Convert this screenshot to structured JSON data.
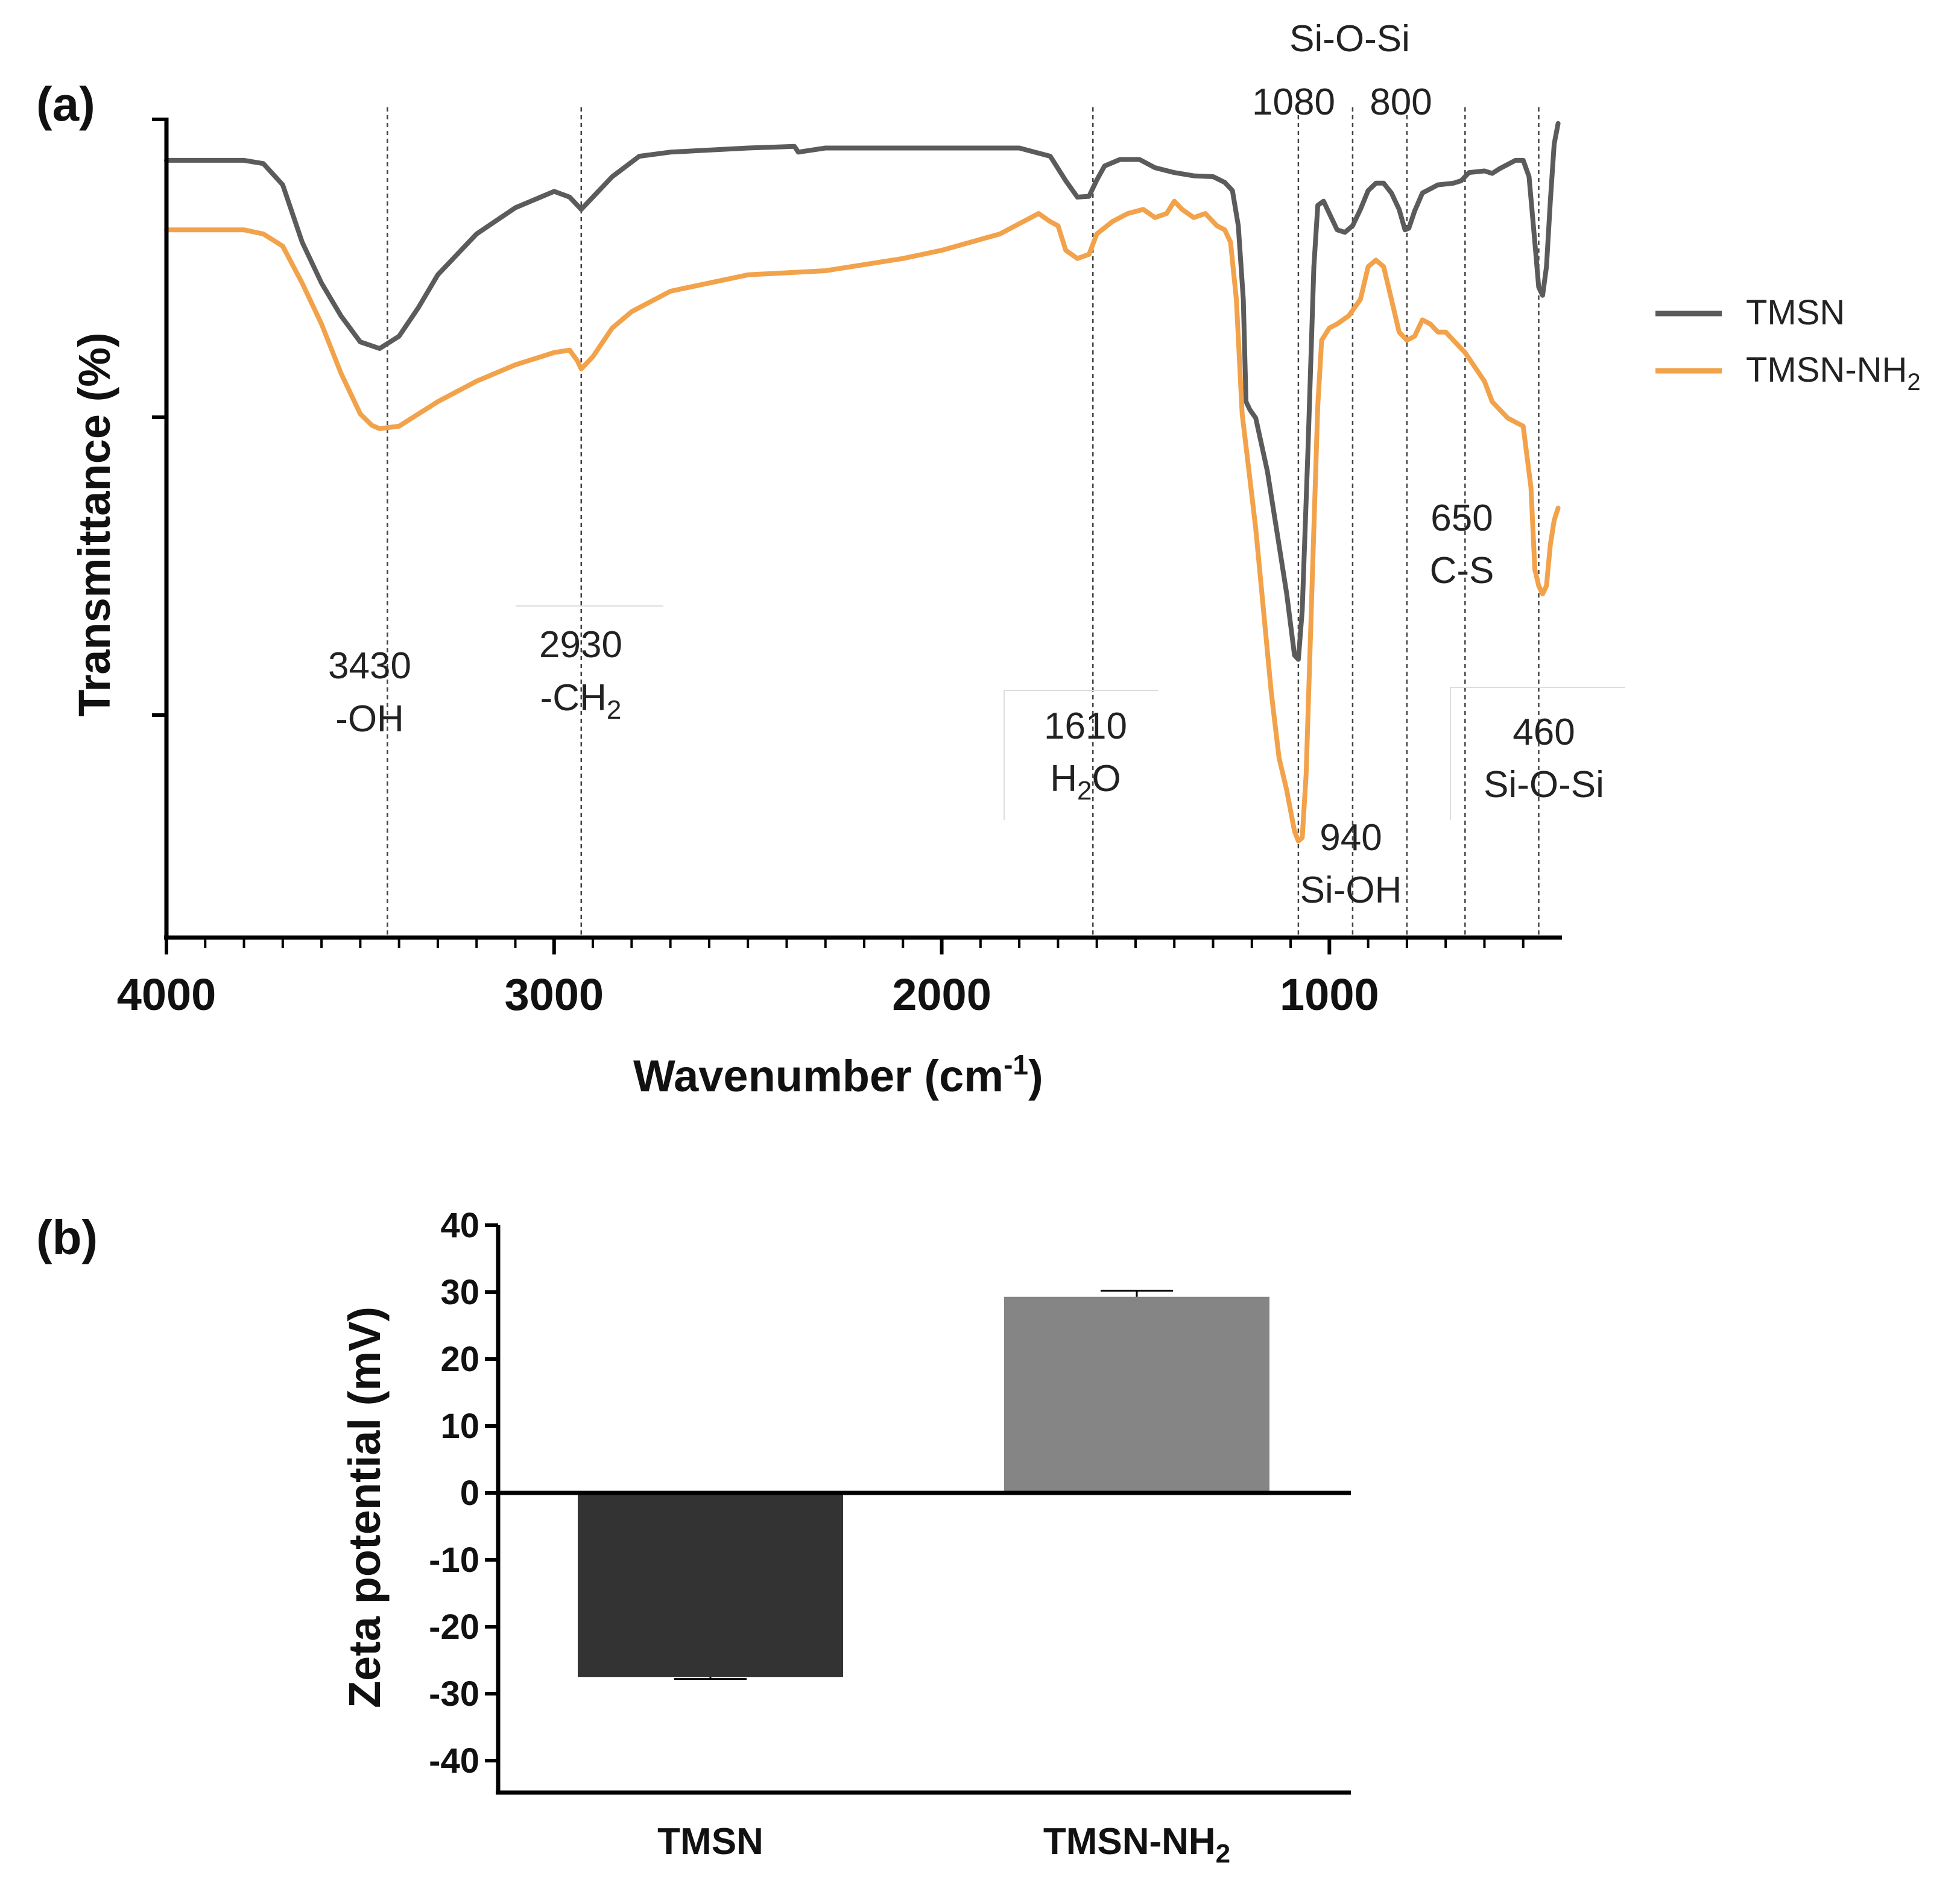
{
  "colors": {
    "tmsn_line": "#5b5b5b",
    "tmsn_nh2_line": "#f2a24a",
    "bar_tmsn": "#333333",
    "bar_tmsn_nh2": "#858585",
    "axis": "#000000",
    "guide": "#444444"
  },
  "chart_data": [
    {
      "type": "line",
      "panel_label": "(a)",
      "xlabel": "Wavenumber (cm",
      "xlabel_sup": "-1",
      "xlabel_end": ")",
      "ylabel": "Transmittance (%)",
      "xlim": [
        4000,
        400
      ],
      "x_reversed": true,
      "ylim": [
        0,
        100
      ],
      "y_ticks_labeled": false,
      "x_ticks": [
        "4000",
        "3000",
        "2000",
        "1000"
      ],
      "legend_position": "right",
      "series": [
        {
          "name": "TMSN",
          "color_key": "tmsn_line",
          "points": [
            [
              4000,
              95
            ],
            [
              3800,
              95
            ],
            [
              3750,
              94.6
            ],
            [
              3700,
              92
            ],
            [
              3650,
              85
            ],
            [
              3600,
              80
            ],
            [
              3550,
              76
            ],
            [
              3500,
              72.8
            ],
            [
              3450,
              72
            ],
            [
              3400,
              73.5
            ],
            [
              3350,
              77
            ],
            [
              3300,
              81
            ],
            [
              3200,
              86
            ],
            [
              3100,
              89.2
            ],
            [
              3000,
              91.2
            ],
            [
              2960,
              90.5
            ],
            [
              2930,
              89
            ],
            [
              2900,
              90.5
            ],
            [
              2850,
              93
            ],
            [
              2780,
              95.5
            ],
            [
              2700,
              96
            ],
            [
              2500,
              96.5
            ],
            [
              2380,
              96.7
            ],
            [
              2370,
              96
            ],
            [
              2300,
              96.5
            ],
            [
              2000,
              96.5
            ],
            [
              1800,
              96.5
            ],
            [
              1720,
              95.5
            ],
            [
              1680,
              92.5
            ],
            [
              1650,
              90.5
            ],
            [
              1620,
              90.6
            ],
            [
              1600,
              92.6
            ],
            [
              1580,
              94.3
            ],
            [
              1540,
              95.1
            ],
            [
              1490,
              95.1
            ],
            [
              1450,
              94.1
            ],
            [
              1400,
              93.5
            ],
            [
              1350,
              93.1
            ],
            [
              1300,
              93
            ],
            [
              1270,
              92.3
            ],
            [
              1250,
              91.3
            ],
            [
              1235,
              87
            ],
            [
              1222,
              78
            ],
            [
              1215,
              65.5
            ],
            [
              1205,
              64.5
            ],
            [
              1190,
              63.5
            ],
            [
              1160,
              57
            ],
            [
              1130,
              48
            ],
            [
              1110,
              42
            ],
            [
              1090,
              34.5
            ],
            [
              1080,
              34
            ],
            [
              1070,
              40
            ],
            [
              1055,
              60
            ],
            [
              1040,
              82
            ],
            [
              1030,
              89.5
            ],
            [
              1015,
              90
            ],
            [
              1000,
              88.5
            ],
            [
              980,
              86.5
            ],
            [
              960,
              86.2
            ],
            [
              940,
              87
            ],
            [
              920,
              89
            ],
            [
              900,
              91.3
            ],
            [
              880,
              92.2
            ],
            [
              860,
              92.2
            ],
            [
              840,
              91
            ],
            [
              820,
              89
            ],
            [
              805,
              86.5
            ],
            [
              795,
              86.7
            ],
            [
              780,
              88.8
            ],
            [
              760,
              91
            ],
            [
              740,
              91.5
            ],
            [
              720,
              92
            ],
            [
              680,
              92.2
            ],
            [
              660,
              92.5
            ],
            [
              640,
              93.5
            ],
            [
              600,
              93.7
            ],
            [
              580,
              93.4
            ],
            [
              560,
              94
            ],
            [
              520,
              95
            ],
            [
              500,
              95
            ],
            [
              485,
              93
            ],
            [
              470,
              85
            ],
            [
              460,
              79.5
            ],
            [
              450,
              78.5
            ],
            [
              440,
              82
            ],
            [
              430,
              90
            ],
            [
              420,
              97
            ],
            [
              410,
              99.5
            ]
          ]
        },
        {
          "name": "TMSN-NH",
          "name_sub": "2",
          "color_key": "tmsn_nh2_line",
          "points": [
            [
              4000,
              86.5
            ],
            [
              3800,
              86.5
            ],
            [
              3750,
              86
            ],
            [
              3700,
              84.5
            ],
            [
              3650,
              80
            ],
            [
              3600,
              75
            ],
            [
              3550,
              69
            ],
            [
              3500,
              64
            ],
            [
              3470,
              62.6
            ],
            [
              3450,
              62.2
            ],
            [
              3400,
              62.5
            ],
            [
              3350,
              64
            ],
            [
              3300,
              65.5
            ],
            [
              3200,
              68
            ],
            [
              3100,
              70
            ],
            [
              3000,
              71.5
            ],
            [
              2960,
              71.8
            ],
            [
              2940,
              70.5
            ],
            [
              2930,
              69.5
            ],
            [
              2900,
              71
            ],
            [
              2850,
              74.5
            ],
            [
              2800,
              76.5
            ],
            [
              2700,
              79
            ],
            [
              2500,
              81
            ],
            [
              2300,
              81.5
            ],
            [
              2100,
              83
            ],
            [
              2000,
              84
            ],
            [
              1850,
              86
            ],
            [
              1790,
              87.5
            ],
            [
              1750,
              88.5
            ],
            [
              1720,
              87.5
            ],
            [
              1700,
              87
            ],
            [
              1680,
              84
            ],
            [
              1650,
              83
            ],
            [
              1620,
              83.5
            ],
            [
              1600,
              86
            ],
            [
              1560,
              87.5
            ],
            [
              1520,
              88.5
            ],
            [
              1480,
              89
            ],
            [
              1450,
              88
            ],
            [
              1420,
              88.5
            ],
            [
              1400,
              90
            ],
            [
              1380,
              89
            ],
            [
              1350,
              88
            ],
            [
              1320,
              88.5
            ],
            [
              1290,
              87
            ],
            [
              1270,
              86.5
            ],
            [
              1255,
              85
            ],
            [
              1240,
              78
            ],
            [
              1225,
              64
            ],
            [
              1210,
              58
            ],
            [
              1190,
              50
            ],
            [
              1170,
              40
            ],
            [
              1150,
              30
            ],
            [
              1130,
              22
            ],
            [
              1110,
              18
            ],
            [
              1090,
              13
            ],
            [
              1080,
              11.8
            ],
            [
              1070,
              12.2
            ],
            [
              1060,
              20
            ],
            [
              1050,
              35
            ],
            [
              1040,
              50
            ],
            [
              1030,
              65
            ],
            [
              1020,
              73
            ],
            [
              1000,
              74.5
            ],
            [
              980,
              75
            ],
            [
              950,
              76
            ],
            [
              920,
              78
            ],
            [
              900,
              82
            ],
            [
              880,
              82.8
            ],
            [
              860,
              82
            ],
            [
              840,
              78
            ],
            [
              820,
              74
            ],
            [
              800,
              73
            ],
            [
              780,
              73.5
            ],
            [
              760,
              75.5
            ],
            [
              740,
              75
            ],
            [
              720,
              74
            ],
            [
              700,
              74
            ],
            [
              680,
              73
            ],
            [
              650,
              71.5
            ],
            [
              600,
              68
            ],
            [
              580,
              65.5
            ],
            [
              540,
              63.5
            ],
            [
              500,
              62.5
            ],
            [
              480,
              55
            ],
            [
              470,
              45
            ],
            [
              460,
              43
            ],
            [
              450,
              42
            ],
            [
              440,
              43
            ],
            [
              430,
              48
            ],
            [
              420,
              51
            ],
            [
              410,
              52.5
            ]
          ]
        }
      ],
      "guide_lines": [
        3430,
        2930,
        1610,
        1080,
        940,
        800,
        650,
        460
      ],
      "annotations": [
        {
          "key": "a3430",
          "line1": "3430",
          "line2": "-OH"
        },
        {
          "key": "a2930",
          "line1": "2930",
          "line2": "-CH",
          "line2_sub": "2"
        },
        {
          "key": "a1610",
          "line1": "1610",
          "line2": "H",
          "line2_sub": "2",
          "line2_end": "O"
        },
        {
          "key": "asioSi_top",
          "line1": "Si-O-Si"
        },
        {
          "key": "a1080",
          "line1": "1080"
        },
        {
          "key": "a800",
          "line1": "800"
        },
        {
          "key": "a940",
          "line1": "940",
          "line2": "Si-OH"
        },
        {
          "key": "a650",
          "line1": "650",
          "line2": "C-S"
        },
        {
          "key": "a460",
          "line1": "460",
          "line2": "Si-O-Si"
        }
      ]
    },
    {
      "type": "bar",
      "panel_label": "(b)",
      "ylabel": "Zeta potential (mV)",
      "ylim": [
        -40,
        40
      ],
      "y_ticks": [
        40,
        30,
        20,
        10,
        0,
        -10,
        -20,
        -30,
        -40
      ],
      "categories": [
        "TMSN",
        "TMSN-NH"
      ],
      "category_subs": [
        "",
        "2"
      ],
      "values": [
        -27.5,
        29.3
      ],
      "errors": [
        0.3,
        0.9
      ],
      "color_keys": [
        "bar_tmsn",
        "bar_tmsn_nh2"
      ]
    }
  ]
}
